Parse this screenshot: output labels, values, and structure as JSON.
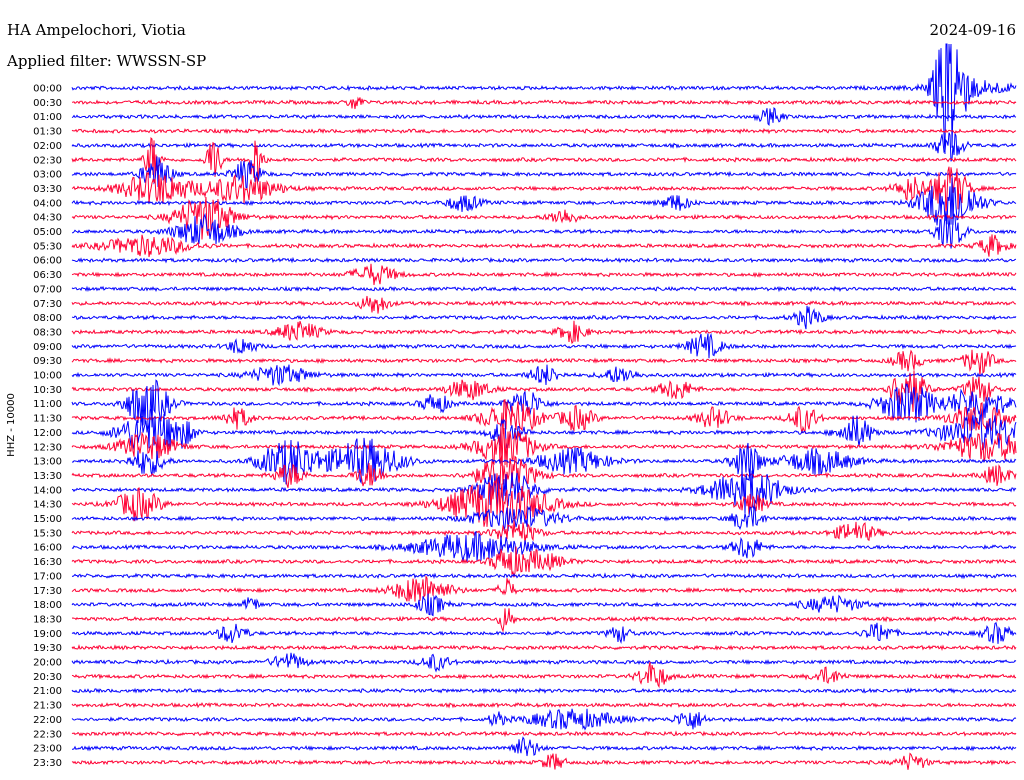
{
  "header": {
    "station": "HA Ampelochori, Viotia",
    "filter": "Applied filter: WWSSN-SP",
    "date": "2024-09-16"
  },
  "chart_data": {
    "type": "line",
    "title": "HA Ampelochori, Viotia",
    "subtitle": "Applied filter: WWSSN-SP",
    "date": "2024-09-16",
    "ylabel": "HHZ - 10000",
    "row_labels": [
      "00:00",
      "00:30",
      "01:00",
      "01:30",
      "02:00",
      "02:30",
      "03:00",
      "03:30",
      "04:00",
      "04:30",
      "05:00",
      "05:30",
      "06:00",
      "06:30",
      "07:00",
      "07:30",
      "08:00",
      "08:30",
      "09:00",
      "09:30",
      "10:00",
      "10:30",
      "11:00",
      "11:30",
      "12:00",
      "12:30",
      "13:00",
      "13:30",
      "14:00",
      "14:30",
      "15:00",
      "15:30",
      "16:00",
      "16:30",
      "17:00",
      "17:30",
      "18:00",
      "18:30",
      "19:00",
      "19:30",
      "20:00",
      "20:30",
      "21:00",
      "21:30",
      "22:00",
      "22:30",
      "23:00",
      "23:30"
    ],
    "trace_colors": [
      "#0000ff",
      "#ff0033"
    ],
    "grid": false,
    "bursts": [
      {
        "row": 0,
        "x": 0.93,
        "w": 0.01,
        "a": 70
      },
      {
        "row": 0,
        "x": 0.95,
        "w": 0.03,
        "a": 8
      },
      {
        "row": 1,
        "x": 0.3,
        "w": 0.005,
        "a": 8
      },
      {
        "row": 2,
        "x": 0.74,
        "w": 0.008,
        "a": 8
      },
      {
        "row": 4,
        "x": 0.93,
        "w": 0.01,
        "a": 15
      },
      {
        "row": 5,
        "x": 0.085,
        "w": 0.005,
        "a": 25
      },
      {
        "row": 5,
        "x": 0.15,
        "w": 0.005,
        "a": 25
      },
      {
        "row": 5,
        "x": 0.195,
        "w": 0.005,
        "a": 25
      },
      {
        "row": 6,
        "x": 0.09,
        "w": 0.01,
        "a": 18
      },
      {
        "row": 6,
        "x": 0.185,
        "w": 0.01,
        "a": 14
      },
      {
        "row": 7,
        "x": 0.09,
        "w": 0.025,
        "a": 16
      },
      {
        "row": 7,
        "x": 0.18,
        "w": 0.025,
        "a": 14
      },
      {
        "row": 7,
        "x": 0.89,
        "w": 0.012,
        "a": 12
      },
      {
        "row": 7,
        "x": 0.93,
        "w": 0.012,
        "a": 26
      },
      {
        "row": 8,
        "x": 0.415,
        "w": 0.012,
        "a": 8
      },
      {
        "row": 8,
        "x": 0.64,
        "w": 0.01,
        "a": 8
      },
      {
        "row": 8,
        "x": 0.93,
        "w": 0.02,
        "a": 28
      },
      {
        "row": 9,
        "x": 0.14,
        "w": 0.02,
        "a": 22
      },
      {
        "row": 9,
        "x": 0.52,
        "w": 0.01,
        "a": 8
      },
      {
        "row": 10,
        "x": 0.14,
        "w": 0.02,
        "a": 16
      },
      {
        "row": 10,
        "x": 0.93,
        "w": 0.01,
        "a": 18
      },
      {
        "row": 11,
        "x": 0.08,
        "w": 0.03,
        "a": 10
      },
      {
        "row": 11,
        "x": 0.975,
        "w": 0.01,
        "a": 10
      },
      {
        "row": 13,
        "x": 0.32,
        "w": 0.015,
        "a": 10
      },
      {
        "row": 15,
        "x": 0.32,
        "w": 0.01,
        "a": 10
      },
      {
        "row": 16,
        "x": 0.78,
        "w": 0.01,
        "a": 10
      },
      {
        "row": 17,
        "x": 0.24,
        "w": 0.015,
        "a": 10
      },
      {
        "row": 17,
        "x": 0.53,
        "w": 0.01,
        "a": 10
      },
      {
        "row": 18,
        "x": 0.18,
        "w": 0.01,
        "a": 8
      },
      {
        "row": 18,
        "x": 0.67,
        "w": 0.012,
        "a": 12
      },
      {
        "row": 19,
        "x": 0.885,
        "w": 0.01,
        "a": 10
      },
      {
        "row": 19,
        "x": 0.96,
        "w": 0.01,
        "a": 14
      },
      {
        "row": 20,
        "x": 0.22,
        "w": 0.02,
        "a": 10
      },
      {
        "row": 20,
        "x": 0.5,
        "w": 0.01,
        "a": 10
      },
      {
        "row": 20,
        "x": 0.58,
        "w": 0.012,
        "a": 8
      },
      {
        "row": 21,
        "x": 0.42,
        "w": 0.015,
        "a": 10
      },
      {
        "row": 21,
        "x": 0.64,
        "w": 0.012,
        "a": 10
      },
      {
        "row": 21,
        "x": 0.885,
        "w": 0.012,
        "a": 24
      },
      {
        "row": 21,
        "x": 0.96,
        "w": 0.01,
        "a": 14
      },
      {
        "row": 22,
        "x": 0.08,
        "w": 0.015,
        "a": 26
      },
      {
        "row": 22,
        "x": 0.385,
        "w": 0.01,
        "a": 10
      },
      {
        "row": 22,
        "x": 0.48,
        "w": 0.012,
        "a": 14
      },
      {
        "row": 22,
        "x": 0.885,
        "w": 0.02,
        "a": 20
      },
      {
        "row": 22,
        "x": 0.96,
        "w": 0.02,
        "a": 18
      },
      {
        "row": 23,
        "x": 0.175,
        "w": 0.01,
        "a": 10
      },
      {
        "row": 23,
        "x": 0.465,
        "w": 0.02,
        "a": 18
      },
      {
        "row": 23,
        "x": 0.535,
        "w": 0.012,
        "a": 12
      },
      {
        "row": 23,
        "x": 0.68,
        "w": 0.012,
        "a": 10
      },
      {
        "row": 23,
        "x": 0.775,
        "w": 0.01,
        "a": 14
      },
      {
        "row": 23,
        "x": 0.96,
        "w": 0.02,
        "a": 14
      },
      {
        "row": 24,
        "x": 0.08,
        "w": 0.02,
        "a": 22
      },
      {
        "row": 24,
        "x": 0.115,
        "w": 0.01,
        "a": 12
      },
      {
        "row": 24,
        "x": 0.46,
        "w": 0.012,
        "a": 14
      },
      {
        "row": 24,
        "x": 0.83,
        "w": 0.012,
        "a": 16
      },
      {
        "row": 24,
        "x": 0.965,
        "w": 0.03,
        "a": 18
      },
      {
        "row": 25,
        "x": 0.08,
        "w": 0.02,
        "a": 14
      },
      {
        "row": 25,
        "x": 0.46,
        "w": 0.02,
        "a": 20
      },
      {
        "row": 25,
        "x": 0.97,
        "w": 0.03,
        "a": 14
      },
      {
        "row": 26,
        "x": 0.08,
        "w": 0.012,
        "a": 14
      },
      {
        "row": 26,
        "x": 0.23,
        "w": 0.02,
        "a": 22
      },
      {
        "row": 26,
        "x": 0.31,
        "w": 0.025,
        "a": 22
      },
      {
        "row": 26,
        "x": 0.53,
        "w": 0.025,
        "a": 12
      },
      {
        "row": 26,
        "x": 0.715,
        "w": 0.01,
        "a": 20
      },
      {
        "row": 26,
        "x": 0.79,
        "w": 0.025,
        "a": 12
      },
      {
        "row": 27,
        "x": 0.23,
        "w": 0.01,
        "a": 12
      },
      {
        "row": 27,
        "x": 0.315,
        "w": 0.01,
        "a": 12
      },
      {
        "row": 27,
        "x": 0.46,
        "w": 0.02,
        "a": 20
      },
      {
        "row": 27,
        "x": 0.98,
        "w": 0.01,
        "a": 10
      },
      {
        "row": 28,
        "x": 0.46,
        "w": 0.02,
        "a": 20
      },
      {
        "row": 28,
        "x": 0.715,
        "w": 0.025,
        "a": 22
      },
      {
        "row": 29,
        "x": 0.07,
        "w": 0.015,
        "a": 16
      },
      {
        "row": 29,
        "x": 0.45,
        "w": 0.035,
        "a": 24
      },
      {
        "row": 29,
        "x": 0.72,
        "w": 0.01,
        "a": 10
      },
      {
        "row": 30,
        "x": 0.47,
        "w": 0.03,
        "a": 12
      },
      {
        "row": 30,
        "x": 0.715,
        "w": 0.01,
        "a": 14
      },
      {
        "row": 31,
        "x": 0.47,
        "w": 0.015,
        "a": 12
      },
      {
        "row": 31,
        "x": 0.83,
        "w": 0.015,
        "a": 10
      },
      {
        "row": 32,
        "x": 0.425,
        "w": 0.04,
        "a": 14
      },
      {
        "row": 32,
        "x": 0.715,
        "w": 0.01,
        "a": 12
      },
      {
        "row": 33,
        "x": 0.46,
        "w": 0.01,
        "a": 12
      },
      {
        "row": 33,
        "x": 0.49,
        "w": 0.02,
        "a": 10
      },
      {
        "row": 35,
        "x": 0.37,
        "w": 0.02,
        "a": 14
      },
      {
        "row": 35,
        "x": 0.46,
        "w": 0.005,
        "a": 14
      },
      {
        "row": 36,
        "x": 0.38,
        "w": 0.01,
        "a": 10
      },
      {
        "row": 36,
        "x": 0.19,
        "w": 0.005,
        "a": 8
      },
      {
        "row": 36,
        "x": 0.805,
        "w": 0.02,
        "a": 8
      },
      {
        "row": 37,
        "x": 0.46,
        "w": 0.005,
        "a": 14
      },
      {
        "row": 38,
        "x": 0.17,
        "w": 0.01,
        "a": 10
      },
      {
        "row": 38,
        "x": 0.58,
        "w": 0.008,
        "a": 8
      },
      {
        "row": 38,
        "x": 0.855,
        "w": 0.01,
        "a": 10
      },
      {
        "row": 38,
        "x": 0.98,
        "w": 0.01,
        "a": 10
      },
      {
        "row": 40,
        "x": 0.23,
        "w": 0.012,
        "a": 8
      },
      {
        "row": 40,
        "x": 0.385,
        "w": 0.01,
        "a": 8
      },
      {
        "row": 41,
        "x": 0.615,
        "w": 0.01,
        "a": 14
      },
      {
        "row": 41,
        "x": 0.8,
        "w": 0.01,
        "a": 8
      },
      {
        "row": 44,
        "x": 0.45,
        "w": 0.005,
        "a": 8
      },
      {
        "row": 44,
        "x": 0.53,
        "w": 0.03,
        "a": 10
      },
      {
        "row": 44,
        "x": 0.655,
        "w": 0.01,
        "a": 10
      },
      {
        "row": 46,
        "x": 0.48,
        "w": 0.01,
        "a": 10
      },
      {
        "row": 47,
        "x": 0.51,
        "w": 0.008,
        "a": 8
      },
      {
        "row": 47,
        "x": 0.89,
        "w": 0.01,
        "a": 8
      }
    ]
  }
}
